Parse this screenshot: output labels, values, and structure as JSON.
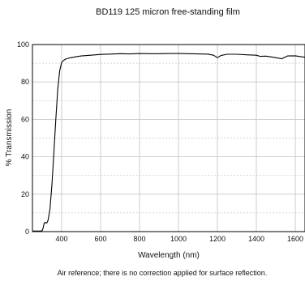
{
  "chart_data": {
    "type": "line",
    "title": "BD119 125 micron free-standing film",
    "xlabel": "Wavelength (nm)",
    "ylabel": "% Transmission",
    "caption": "Air reference; there is no correction applied for surface reflection.",
    "xlim": [
      250,
      1650
    ],
    "ylim": [
      0,
      100
    ],
    "x_ticks": [
      400,
      600,
      800,
      1000,
      1200,
      1400,
      1600
    ],
    "y_ticks": [
      0,
      20,
      40,
      60,
      80,
      100
    ],
    "grid": true,
    "series": [
      {
        "color": "#000000",
        "x": [
          250,
          290,
          300,
          305,
          310,
          315,
          320,
          325,
          330,
          340,
          350,
          360,
          370,
          380,
          390,
          400,
          410,
          420,
          440,
          460,
          480,
          500,
          550,
          600,
          650,
          700,
          750,
          800,
          850,
          900,
          950,
          1000,
          1050,
          1100,
          1150,
          1180,
          1200,
          1220,
          1250,
          1300,
          1350,
          1400,
          1420,
          1450,
          1500,
          1530,
          1560,
          1600,
          1650
        ],
        "y": [
          0.3,
          0.3,
          0.5,
          2.0,
          4.5,
          5.0,
          4.5,
          4.8,
          6.0,
          12,
          25,
          42,
          60,
          76,
          86,
          90.5,
          91.5,
          92.2,
          92.8,
          93.2,
          93.6,
          93.9,
          94.3,
          94.7,
          94.9,
          95.1,
          95.0,
          95.2,
          95.1,
          95.1,
          95.2,
          95.2,
          95.1,
          95.0,
          94.9,
          94.3,
          93.0,
          94.2,
          94.8,
          94.8,
          94.5,
          94.3,
          93.7,
          93.8,
          93.0,
          92.4,
          93.9,
          94.0,
          93.2
        ]
      }
    ]
  }
}
